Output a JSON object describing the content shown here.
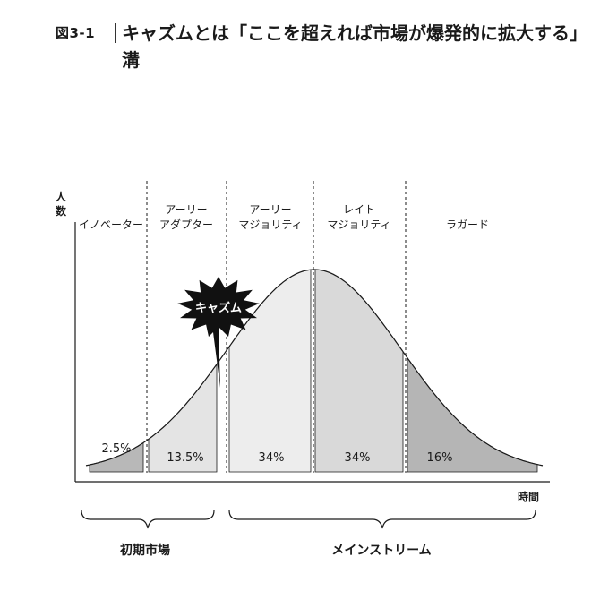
{
  "figure": {
    "number": "図3-1",
    "title": "キャズムとは「ここを超えれば市場が爆発的に拡大する」溝"
  },
  "axes": {
    "y_label": "人数",
    "x_label": "時間"
  },
  "segments": [
    {
      "name": "イノベーター",
      "percent": "2.5%"
    },
    {
      "name": "アーリー\nアダプター",
      "percent": "13.5%"
    },
    {
      "name": "アーリー\nマジョリティ",
      "percent": "34%"
    },
    {
      "name": "レイト\nマジョリティ",
      "percent": "34%"
    },
    {
      "name": "ラガード",
      "percent": "16%"
    }
  ],
  "chasm_label": "キャズム",
  "brackets": {
    "early_market": "初期市場",
    "mainstream": "メインストリーム"
  },
  "colors": {
    "ink": "#1a1a1a",
    "innovator_fill": "#b8b8b8",
    "early_adopter_fill": "#e4e4e4",
    "early_majority_fill": "#ededed",
    "late_majority_fill": "#d9d9d9",
    "laggard_fill": "#b5b5b5"
  }
}
